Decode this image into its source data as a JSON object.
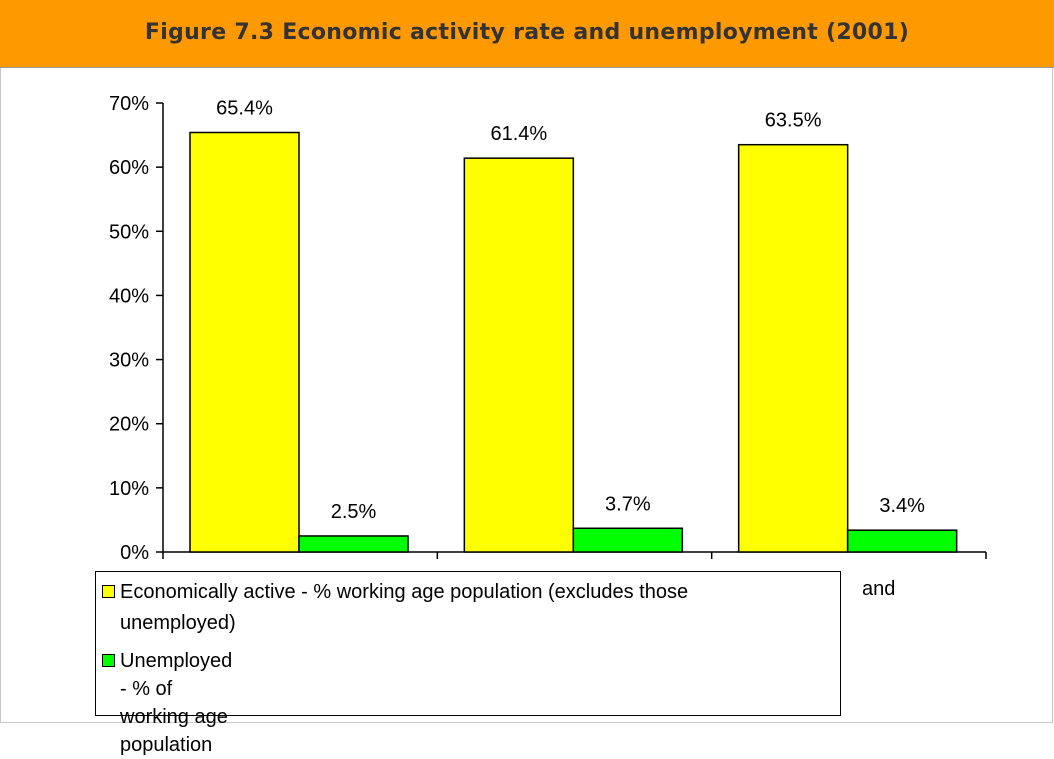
{
  "title": "Figure 7.3 Economic activity rate and unemployment (2001)",
  "colors": {
    "title_bar": "#ff9900",
    "active": "#ffff00",
    "unemployed": "#00ff00"
  },
  "chart_data": {
    "type": "bar",
    "categories": [
      "",
      "",
      ""
    ],
    "series": [
      {
        "name": "Economically active - % working age population (excludes those unemployed)",
        "values": [
          65.4,
          61.4,
          63.5
        ],
        "labels": [
          "65.4%",
          "61.4%",
          "63.5%"
        ]
      },
      {
        "name": "Unemployed - % of working age population",
        "values": [
          2.5,
          3.7,
          3.4
        ],
        "labels": [
          "2.5%",
          "3.7%",
          "3.4%"
        ]
      }
    ],
    "ylim": [
      0,
      70
    ],
    "yticks": [
      "0%",
      "10%",
      "20%",
      "30%",
      "40%",
      "50%",
      "60%",
      "70%"
    ],
    "grid": false,
    "legend_position": "bottom-left"
  },
  "legend": {
    "item1_line1": "Economically active - % working age population (excludes those",
    "item1_line2": "unemployed)",
    "item2": "Unemployed - % of working age population",
    "overflow_text": "and"
  }
}
